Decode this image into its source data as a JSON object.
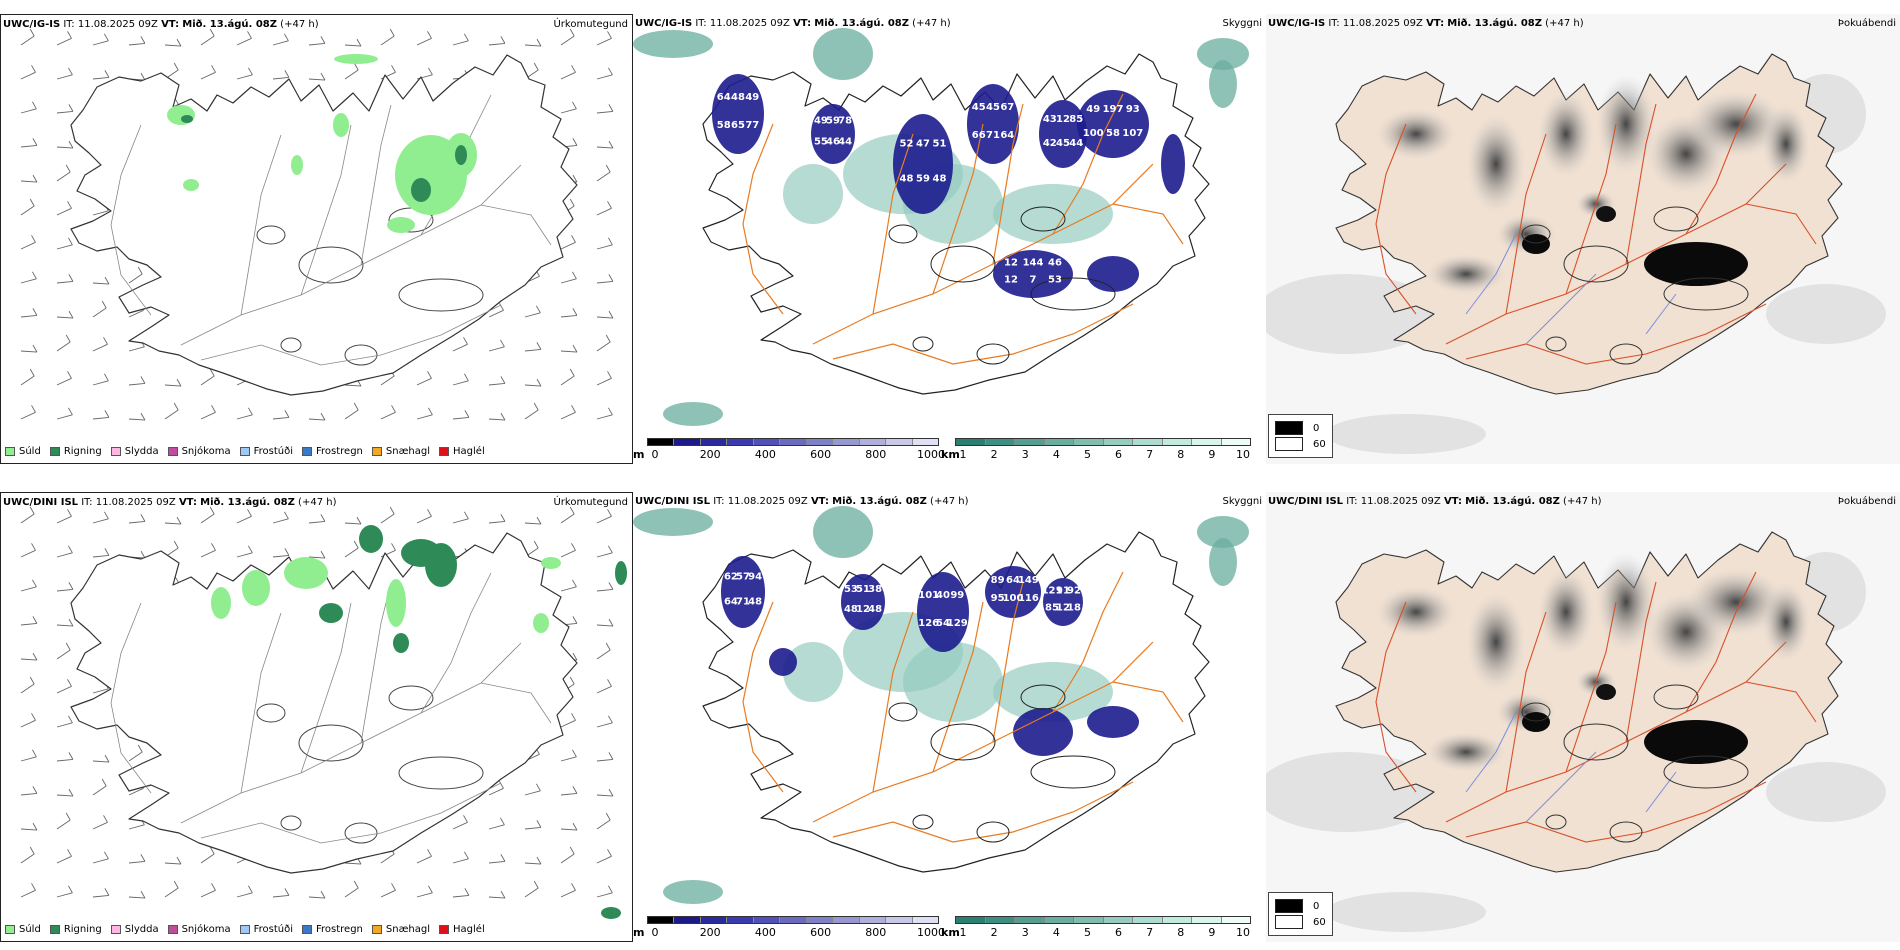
{
  "panels": [
    {
      "id": "top-left",
      "model": "UWC/IG-IS",
      "issue_label": "IT:",
      "issue": "11.08.2025 09Z",
      "valid_label": "VT:",
      "valid": "Mið. 13.ágú. 08Z",
      "lead": "(+47 h)",
      "title": "Úrkomutegund"
    },
    {
      "id": "top-mid",
      "model": "UWC/IG-IS",
      "issue_label": "IT:",
      "issue": "11.08.2025 09Z",
      "valid_label": "VT:",
      "valid": "Mið. 13.ágú. 08Z",
      "lead": "(+47 h)",
      "title": "Skyggni"
    },
    {
      "id": "top-right",
      "model": "UWC/IG-IS",
      "issue_label": "IT:",
      "issue": "11.08.2025 09Z",
      "valid_label": "VT:",
      "valid": "Mið. 13.ágú. 08Z",
      "lead": "(+47 h)",
      "title": "Þokuábendi"
    },
    {
      "id": "bot-left",
      "model": "UWC/DINI ISL",
      "issue_label": "IT:",
      "issue": "11.08.2025 09Z",
      "valid_label": "VT:",
      "valid": "Mið. 13.ágú. 08Z",
      "lead": "(+47 h)",
      "title": "Úrkomutegund"
    },
    {
      "id": "bot-mid",
      "model": "UWC/DINI ISL",
      "issue_label": "IT:",
      "issue": "11.08.2025 09Z",
      "valid_label": "VT:",
      "valid": "Mið. 13.ágú. 08Z",
      "lead": "(+47 h)",
      "title": "Skyggni"
    },
    {
      "id": "bot-right",
      "model": "UWC/DINI ISL",
      "issue_label": "IT:",
      "issue": "11.08.2025 09Z",
      "valid_label": "VT:",
      "valid": "Mið. 13.ágú. 08Z",
      "lead": "(+47 h)",
      "title": "Þokuábendi"
    }
  ],
  "precip_legend": [
    {
      "label": "Súld",
      "color": "#90ee90"
    },
    {
      "label": "Rigning",
      "color": "#2e8b57"
    },
    {
      "label": "Slydda",
      "color": "#ffb6e1"
    },
    {
      "label": "Snjókoma",
      "color": "#c04ca0"
    },
    {
      "label": "Frostúði",
      "color": "#9ec9f5"
    },
    {
      "label": "Frostregn",
      "color": "#3a78c8"
    },
    {
      "label": "Snæhagl",
      "color": "#f5a623"
    },
    {
      "label": "Haglél",
      "color": "#e0101a"
    }
  ],
  "cloud_base_scale": {
    "unit": "m",
    "ticks": [
      "0",
      "200",
      "400",
      "600",
      "800",
      "1000"
    ],
    "colors": [
      "#000000",
      "#1a1a8c",
      "#2a2aa0",
      "#3a3ab0",
      "#5050b8",
      "#6a6ac0",
      "#8080c8",
      "#9898d0",
      "#b0b0dc",
      "#c8c8e8",
      "#e0e0f4"
    ]
  },
  "visibility_scale": {
    "unit": "km",
    "ticks": [
      "1",
      "2",
      "3",
      "4",
      "5",
      "6",
      "7",
      "8",
      "9",
      "10"
    ],
    "colors": [
      "#2a7f70",
      "#3f8f80",
      "#559e90",
      "#6aae9f",
      "#80bdaf",
      "#96ccbf",
      "#acdccf",
      "#c2ebdf",
      "#d8f5ee",
      "#eefbf8"
    ]
  },
  "fog_legend": [
    {
      "label": "0",
      "color": "#000000"
    },
    {
      "label": "60",
      "color": "#ffffff"
    }
  ],
  "cloud_base_values_top": [
    "64",
    "48",
    "49",
    "58",
    "65",
    "77",
    "49",
    "59",
    "78",
    "55",
    "46",
    "44",
    "52",
    "47",
    "51",
    "48",
    "59",
    "48",
    "45",
    "45",
    "67",
    "66",
    "71",
    "64",
    "43",
    "12",
    "85",
    "42",
    "45",
    "44",
    "49",
    "197",
    "93",
    "100",
    "58",
    "107",
    "12",
    "144",
    "46",
    "12",
    "7",
    "53"
  ],
  "cloud_base_values_bot": [
    "62",
    "57",
    "94",
    "64",
    "71",
    "48",
    "53",
    "51",
    "38",
    "48",
    "12",
    "48",
    "101",
    "40",
    "99",
    "126",
    "54",
    "129",
    "89",
    "64",
    "149",
    "95",
    "100",
    "116",
    "121",
    "91",
    "92",
    "85",
    "12",
    "18"
  ],
  "colors": {
    "precip_drizzle": "#90ee90",
    "precip_rain": "#2e8b57",
    "cloud_dark": "#1c1c8e",
    "road_orange": "#e87a20",
    "land_fog": "#f1e1d2"
  }
}
